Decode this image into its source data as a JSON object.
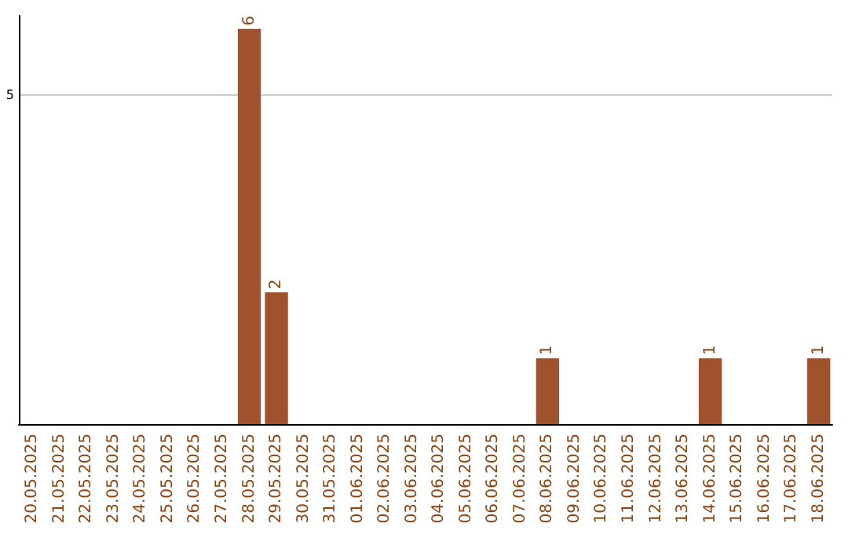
{
  "chart_data": {
    "type": "bar",
    "categories": [
      "20.05.2025",
      "21.05.2025",
      "22.05.2025",
      "23.05.2025",
      "24.05.2025",
      "25.05.2025",
      "26.05.2025",
      "27.05.2025",
      "28.05.2025",
      "29.05.2025",
      "30.05.2025",
      "31.05.2025",
      "01.06.2025",
      "02.06.2025",
      "03.06.2025",
      "04.06.2025",
      "05.06.2025",
      "06.06.2025",
      "07.06.2025",
      "08.06.2025",
      "09.06.2025",
      "10.06.2025",
      "11.06.2025",
      "12.06.2025",
      "13.06.2025",
      "14.06.2025",
      "15.06.2025",
      "16.06.2025",
      "17.06.2025",
      "18.06.2025"
    ],
    "values": [
      0,
      0,
      0,
      0,
      0,
      0,
      0,
      0,
      6,
      2,
      0,
      0,
      0,
      0,
      0,
      0,
      0,
      0,
      0,
      1,
      0,
      0,
      0,
      0,
      0,
      1,
      0,
      0,
      0,
      1
    ],
    "value_labels": [
      null,
      null,
      null,
      null,
      null,
      null,
      null,
      null,
      "6",
      "2",
      null,
      null,
      null,
      null,
      null,
      null,
      null,
      null,
      null,
      "1",
      null,
      null,
      null,
      null,
      null,
      "1",
      null,
      null,
      null,
      "1"
    ],
    "color": "#a0522d",
    "ylim": [
      0,
      6.2
    ],
    "yticks": [
      5
    ],
    "grid": "y"
  }
}
